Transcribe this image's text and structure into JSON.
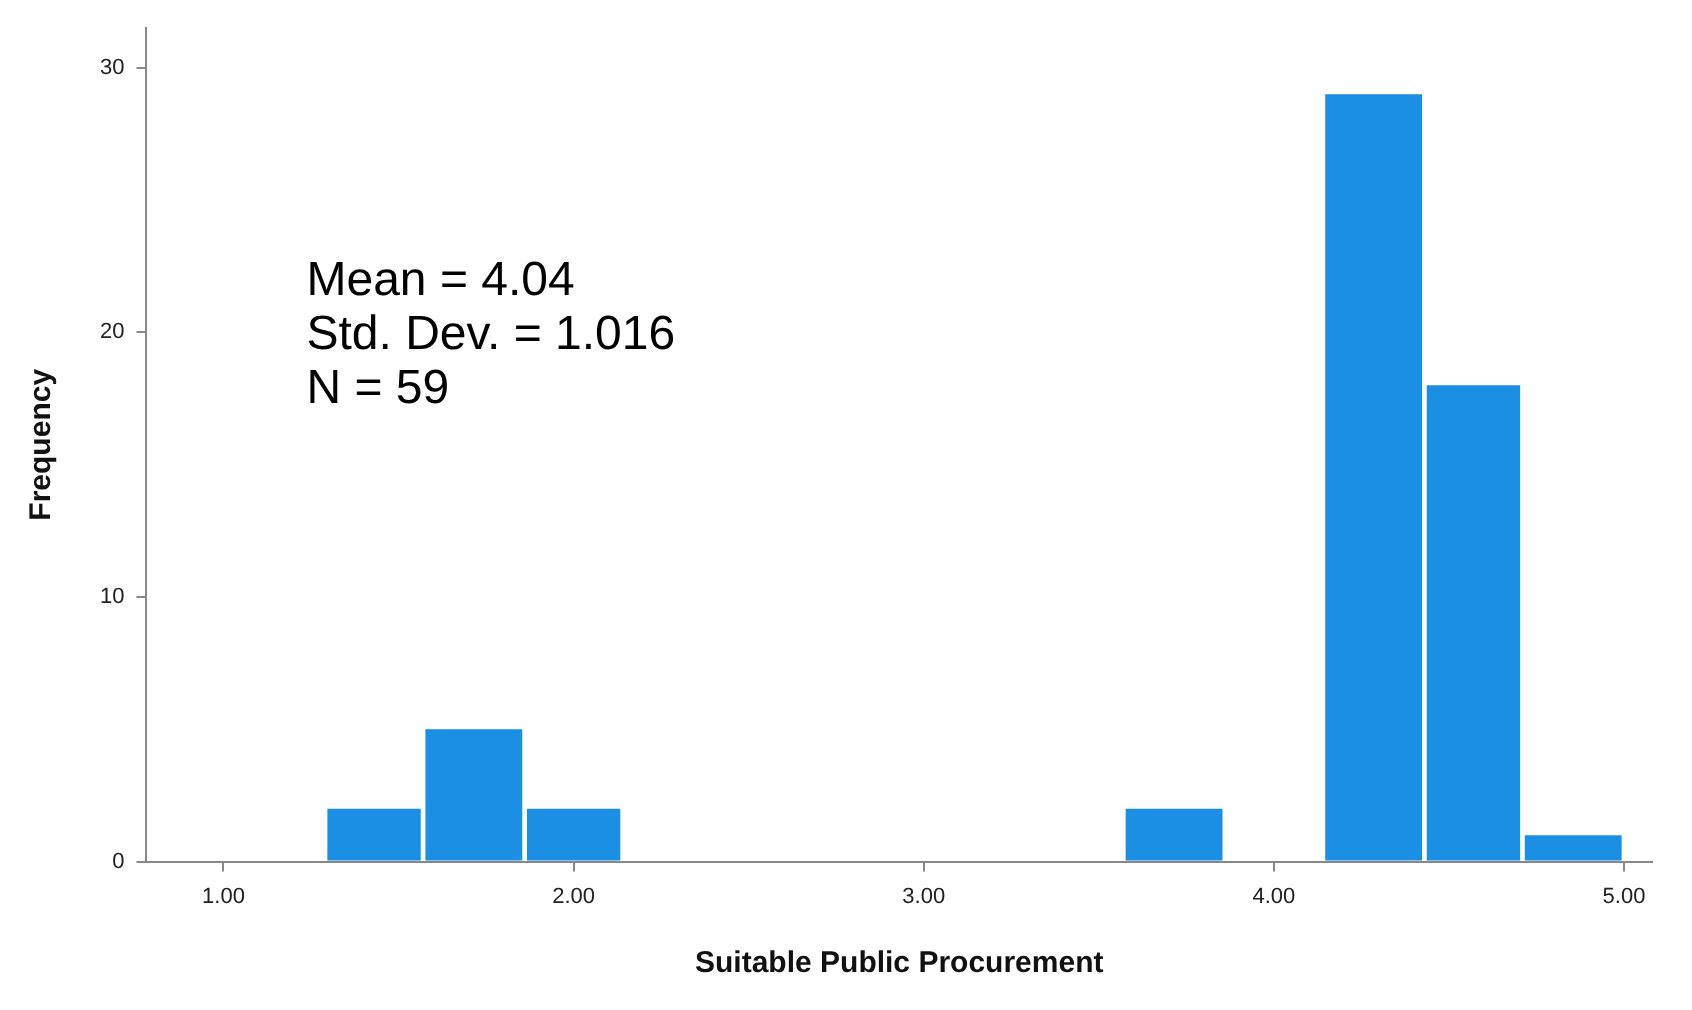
{
  "chart_data": {
    "type": "histogram",
    "xlabel": "Suitable Public Procurement",
    "ylabel": "Frequency",
    "bins": [
      1.29,
      1.57,
      1.86,
      2.14,
      2.43,
      2.71,
      3.0,
      3.29,
      3.57,
      3.86,
      4.14,
      4.43,
      4.71,
      5.0
    ],
    "values": [
      2,
      5,
      2,
      0,
      0,
      0,
      0,
      0,
      2,
      0,
      29,
      18,
      1
    ],
    "color": "#1a8fe3",
    "xlim": [
      0.78,
      5.08
    ],
    "xticks": [
      {
        "value": 1,
        "label": "1.00"
      },
      {
        "value": 2,
        "label": "2.00"
      },
      {
        "value": 3,
        "label": "3.00"
      },
      {
        "value": 4,
        "label": "4.00"
      },
      {
        "value": 5,
        "label": "5.00"
      }
    ],
    "ylim": [
      0,
      31.5
    ],
    "yticks": [
      0,
      10,
      20,
      30
    ],
    "grid": false,
    "legend": false,
    "annotations": [
      "Mean = 4.04",
      "Std. Dev. = 1.016",
      "N = 59"
    ]
  }
}
